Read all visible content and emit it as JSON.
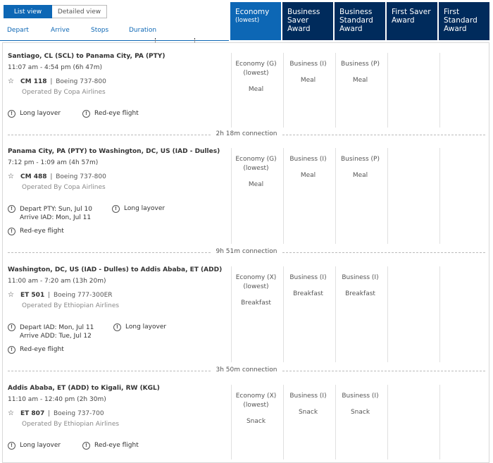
{
  "view_toggle": {
    "list": "List view",
    "detailed": "Detailed view"
  },
  "sort_tabs": [
    "Depart",
    "Arrive",
    "Stops",
    "Duration"
  ],
  "fare_columns": [
    {
      "line1": "Economy",
      "line2": "(lowest)",
      "selected": true
    },
    {
      "line1": "Business Saver Award",
      "line2": "",
      "selected": false
    },
    {
      "line1": "Business Standard Award",
      "line2": "",
      "selected": false
    },
    {
      "line1": "First Saver Award",
      "line2": "",
      "selected": false
    },
    {
      "line1": "First Standard Award",
      "line2": "",
      "selected": false
    }
  ],
  "segments": [
    {
      "route": "Santiago, CL (SCL) to Panama City, PA (PTY)",
      "times": "11:07 am - 4:54 pm (6h 47m)",
      "flight_no": "CM 118",
      "aircraft": "Boeing 737-800",
      "operated_by": "Operated By Copa Airlines",
      "notes": {
        "long_layover": "Long layover",
        "red_eye": "Red-eye flight"
      },
      "fares": [
        {
          "cabin": "Economy (G)",
          "sub": "(lowest)",
          "meal": "Meal"
        },
        {
          "cabin": "Business (I)",
          "sub": "",
          "meal": "Meal"
        },
        {
          "cabin": "Business (P)",
          "sub": "",
          "meal": "Meal"
        }
      ]
    },
    {
      "route": "Panama City, PA (PTY) to Washington, DC, US (IAD - Dulles)",
      "times": "7:12 pm - 1:09 am (4h 57m)",
      "flight_no": "CM 488",
      "aircraft": "Boeing 737-800",
      "operated_by": "Operated By Copa Airlines",
      "notes": {
        "depart": "Depart PTY: Sun, Jul 10",
        "arrive": "Arrive IAD: Mon, Jul 11",
        "long_layover": "Long layover",
        "red_eye": "Red-eye flight"
      },
      "fares": [
        {
          "cabin": "Economy (G)",
          "sub": "(lowest)",
          "meal": "Meal"
        },
        {
          "cabin": "Business (I)",
          "sub": "",
          "meal": "Meal"
        },
        {
          "cabin": "Business (P)",
          "sub": "",
          "meal": "Meal"
        }
      ]
    },
    {
      "route": "Washington, DC, US (IAD - Dulles) to Addis Ababa, ET (ADD)",
      "times": "11:00 am - 7:20 am (13h 20m)",
      "flight_no": "ET 501",
      "aircraft": "Boeing 777-300ER",
      "operated_by": "Operated By Ethiopian Airlines",
      "notes": {
        "depart": "Depart IAD: Mon, Jul 11",
        "arrive": "Arrive ADD: Tue, Jul 12",
        "long_layover": "Long layover",
        "red_eye": "Red-eye flight"
      },
      "fares": [
        {
          "cabin": "Economy (X)",
          "sub": "(lowest)",
          "meal": "Breakfast"
        },
        {
          "cabin": "Business (I)",
          "sub": "",
          "meal": "Breakfast"
        },
        {
          "cabin": "Business (I)",
          "sub": "",
          "meal": "Breakfast"
        }
      ]
    },
    {
      "route": "Addis Ababa, ET (ADD) to Kigali, RW (KGL)",
      "times": "11:10 am - 12:40 pm (2h 30m)",
      "flight_no": "ET 807",
      "aircraft": "Boeing 737-700",
      "operated_by": "Operated By Ethiopian Airlines",
      "notes": {
        "long_layover": "Long layover",
        "red_eye": "Red-eye flight"
      },
      "fares": [
        {
          "cabin": "Economy (X)",
          "sub": "(lowest)",
          "meal": "Snack"
        },
        {
          "cabin": "Business (I)",
          "sub": "",
          "meal": "Snack"
        },
        {
          "cabin": "Business (I)",
          "sub": "",
          "meal": "Snack"
        }
      ]
    }
  ],
  "connections": [
    "2h 18m connection",
    "9h 51m connection",
    "3h 50m connection"
  ]
}
